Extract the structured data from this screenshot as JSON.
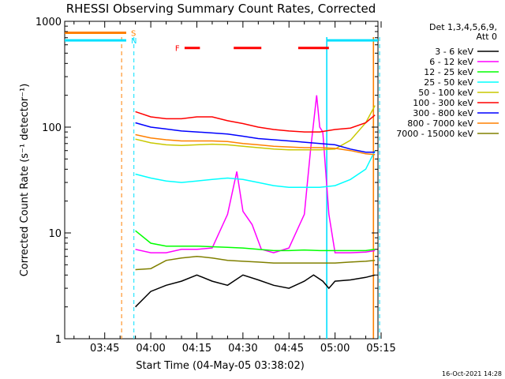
{
  "chart_data": {
    "type": "line",
    "title": "RHESSI Observing Summary Count Rates, Corrected",
    "xlabel": "Start Time (04-May-05 03:38:02)",
    "ylabel": "Corrected Count Rate (s⁻¹ detector⁻¹)",
    "y_scale": "log",
    "ylim": [
      1,
      1000
    ],
    "y_ticks": [
      1,
      10,
      100,
      1000
    ],
    "y_tick_labels": [
      "1",
      "10",
      "100",
      "1000"
    ],
    "x_range_minutes": [
      -28.03,
      73.97
    ],
    "x_ticks": [
      "03:45",
      "04:00",
      "04:15",
      "04:30",
      "04:45",
      "05:00",
      "05:15"
    ],
    "x_tick_minutes": [
      -15,
      0,
      15,
      30,
      45,
      60,
      75
    ],
    "legend_header": "Det 1,3,4,5,6,9,",
    "legend_header2": "Att 0",
    "legend_position": "right",
    "footer_date": "16-Oct-2021 14:28",
    "flags": [
      {
        "label": "S",
        "color": "#ff8000",
        "start": -29,
        "end": -8,
        "level": 780
      },
      {
        "label": "N",
        "color": "#00e0ff",
        "start": -29,
        "end": -8,
        "level": 660
      },
      {
        "label": "F",
        "color": "#ff0000",
        "segments": [
          [
            11,
            16
          ],
          [
            27,
            36
          ],
          [
            48,
            58
          ]
        ],
        "level": 560
      }
    ],
    "flag_N_end_level": 660,
    "vlines": [
      {
        "minute": -9.5,
        "color": "#ff8000",
        "style": "dashed"
      },
      {
        "minute": -5.5,
        "color": "#00e0ff",
        "style": "dashed"
      },
      {
        "minute": 57.3,
        "color": "#00e0ff",
        "style": "solid"
      },
      {
        "minute": 72.5,
        "color": "#ff8000",
        "style": "solid"
      },
      {
        "minute": 74.5,
        "color": "#00e0ff",
        "style": "dashed"
      }
    ],
    "series": [
      {
        "name": "3 - 6 keV",
        "color": "#000000",
        "x": [
          -5,
          0,
          5,
          10,
          15,
          20,
          25,
          30,
          35,
          40,
          45,
          50,
          53,
          56,
          58,
          60,
          65,
          70,
          73
        ],
        "values": [
          2,
          2.8,
          3.2,
          3.5,
          4,
          3.5,
          3.2,
          4,
          3.6,
          3.2,
          3,
          3.5,
          4,
          3.5,
          3,
          3.5,
          3.6,
          3.8,
          4
        ]
      },
      {
        "name": "6 - 12 keV",
        "color": "#ff00ff",
        "x": [
          -5,
          0,
          5,
          10,
          15,
          20,
          25,
          28,
          30,
          33,
          36,
          40,
          45,
          50,
          52,
          54,
          55,
          56,
          58,
          60,
          65,
          70,
          73
        ],
        "values": [
          7,
          6.5,
          6.5,
          7,
          7,
          7.2,
          15,
          38,
          16,
          12,
          7,
          6.5,
          7.2,
          15,
          60,
          200,
          100,
          90,
          15,
          6.5,
          6.5,
          6.6,
          6.8
        ]
      },
      {
        "name": "12 - 25 keV",
        "color": "#00ff00",
        "x": [
          -5,
          0,
          5,
          10,
          15,
          20,
          25,
          30,
          35,
          40,
          45,
          50,
          55,
          60,
          65,
          70,
          73
        ],
        "values": [
          10.5,
          8,
          7.5,
          7.5,
          7.5,
          7.4,
          7.3,
          7.2,
          7,
          6.8,
          6.8,
          6.9,
          6.8,
          6.8,
          6.8,
          6.8,
          7
        ]
      },
      {
        "name": "25 - 50 keV",
        "color": "#00ffff",
        "x": [
          -5,
          0,
          5,
          10,
          15,
          20,
          25,
          30,
          35,
          40,
          45,
          50,
          55,
          60,
          65,
          70,
          73
        ],
        "values": [
          36,
          33,
          31,
          30,
          31,
          32,
          33,
          32,
          30,
          28,
          27,
          27,
          27,
          28,
          32,
          40,
          60
        ]
      },
      {
        "name": "50 - 100 keV",
        "color": "#c8c800",
        "x": [
          -5,
          0,
          5,
          10,
          15,
          20,
          25,
          30,
          35,
          40,
          45,
          50,
          55,
          60,
          65,
          70,
          73
        ],
        "values": [
          77,
          71,
          68,
          67,
          68,
          69,
          68,
          66,
          64,
          62,
          61,
          61,
          61,
          62,
          75,
          110,
          160
        ]
      },
      {
        "name": "100 - 300 keV",
        "color": "#ff0000",
        "x": [
          -5,
          0,
          5,
          10,
          15,
          20,
          25,
          30,
          35,
          40,
          45,
          50,
          55,
          60,
          65,
          70,
          73
        ],
        "values": [
          140,
          125,
          120,
          120,
          125,
          125,
          115,
          108,
          100,
          95,
          92,
          90,
          90,
          95,
          98,
          110,
          130
        ]
      },
      {
        "name": "300 - 800 keV",
        "color": "#0000ff",
        "x": [
          -5,
          0,
          5,
          10,
          15,
          20,
          25,
          30,
          35,
          40,
          45,
          50,
          55,
          60,
          65,
          70,
          73
        ],
        "values": [
          110,
          100,
          96,
          92,
          90,
          88,
          86,
          82,
          78,
          76,
          74,
          72,
          70,
          68,
          62,
          58,
          58
        ]
      },
      {
        "name": "800 - 7000 keV",
        "color": "#ff8000",
        "x": [
          -5,
          0,
          5,
          10,
          15,
          20,
          25,
          30,
          35,
          40,
          45,
          50,
          55,
          60,
          65,
          70,
          73
        ],
        "values": [
          85,
          79,
          76,
          74,
          74,
          74,
          73,
          70,
          68,
          66,
          65,
          64,
          64,
          63,
          60,
          56,
          55
        ]
      },
      {
        "name": "7000 - 15000 keV",
        "color": "#808000",
        "x": [
          -5,
          0,
          5,
          10,
          15,
          20,
          25,
          30,
          35,
          40,
          45,
          50,
          55,
          60,
          65,
          70,
          73
        ],
        "values": [
          4.5,
          4.6,
          5.5,
          5.8,
          6,
          5.8,
          5.5,
          5.4,
          5.3,
          5.2,
          5.2,
          5.2,
          5.2,
          5.2,
          5.3,
          5.4,
          5.5
        ]
      }
    ]
  }
}
